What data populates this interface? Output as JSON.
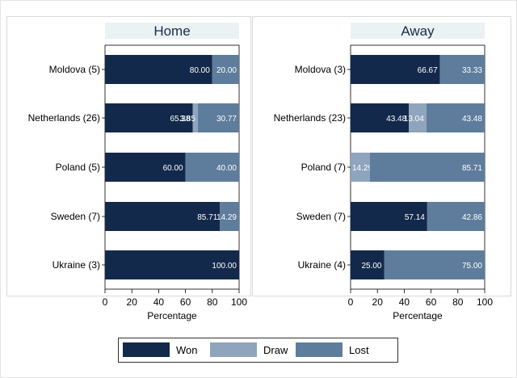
{
  "chart_data": {
    "type": "bar",
    "orientation": "horizontal",
    "stacked": true,
    "grid": false,
    "legend_position": "bottom",
    "series_colors": {
      "Won": "#13294b",
      "Draw": "#8fa4bd",
      "Lost": "#5e7d9c"
    },
    "legend": [
      "Won",
      "Draw",
      "Lost"
    ],
    "panels": [
      {
        "title": "Home",
        "xlabel": "Percentage",
        "xlim": [
          0,
          100
        ],
        "xticks": [
          "0",
          "20",
          "40",
          "60",
          "80",
          "100"
        ],
        "categories": [
          "Moldova (5)",
          "Netherlands (26)",
          "Poland (5)",
          "Sweden (7)",
          "Ukraine (3)"
        ],
        "series": [
          {
            "name": "Won",
            "values": [
              80.0,
              65.38,
              60.0,
              85.71,
              100.0
            ],
            "labels": [
              "80.00",
              "65.38",
              "60.00",
              "85.71",
              "100.00"
            ]
          },
          {
            "name": "Draw",
            "values": [
              0,
              3.85,
              0,
              0,
              0
            ],
            "labels": [
              "",
              "3.85",
              "",
              "",
              ""
            ]
          },
          {
            "name": "Lost",
            "values": [
              20.0,
              30.77,
              40.0,
              14.29,
              0
            ],
            "labels": [
              "20.00",
              "30.77",
              "40.00",
              "14.29",
              ""
            ]
          }
        ]
      },
      {
        "title": "Away",
        "xlabel": "Percentage",
        "xlim": [
          0,
          100
        ],
        "xticks": [
          "0",
          "20",
          "40",
          "60",
          "80",
          "100"
        ],
        "categories": [
          "Moldova (3)",
          "Netherlands (23)",
          "Poland (7)",
          "Sweden (7)",
          "Ukraine (4)"
        ],
        "series": [
          {
            "name": "Won",
            "values": [
              66.67,
              43.48,
              0,
              57.14,
              25.0
            ],
            "labels": [
              "66.67",
              "43.48",
              "",
              "57.14",
              "25.00"
            ]
          },
          {
            "name": "Draw",
            "values": [
              0,
              13.04,
              14.29,
              0,
              0
            ],
            "labels": [
              "",
              "13.04",
              "14.29",
              "",
              ""
            ]
          },
          {
            "name": "Lost",
            "values": [
              33.33,
              43.48,
              85.71,
              42.86,
              75.0
            ],
            "labels": [
              "33.33",
              "43.48",
              "85.71",
              "42.86",
              "75.00"
            ]
          }
        ]
      }
    ]
  }
}
